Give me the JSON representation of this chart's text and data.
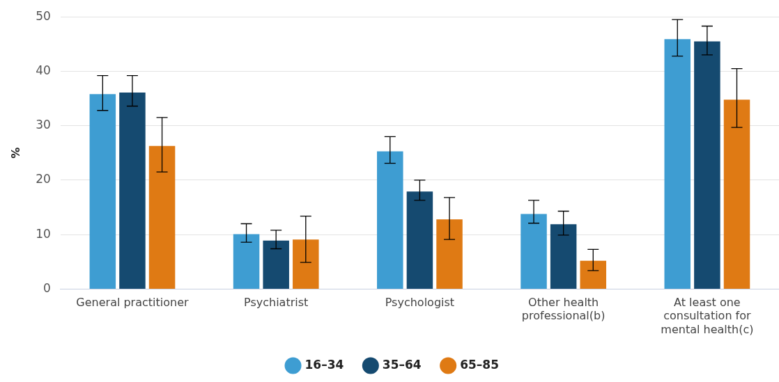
{
  "chart_data": {
    "type": "bar",
    "ylabel": "%",
    "categories": [
      "General practitioner",
      "Psychiatrist",
      "Psychologist",
      "Other health professional(b)",
      "At least one consultation for mental health(c)"
    ],
    "series": [
      {
        "name": "16–34",
        "color": "#3e9dd2",
        "values": [
          35.8,
          10.1,
          25.3,
          13.8,
          45.9
        ],
        "errors": [
          [
            32.8,
            39.2
          ],
          [
            8.6,
            12.0
          ],
          [
            23.1,
            28.0
          ],
          [
            12.1,
            16.3
          ],
          [
            42.8,
            49.5
          ]
        ]
      },
      {
        "name": "35–64",
        "color": "#154a70",
        "values": [
          36.1,
          8.9,
          17.9,
          11.9,
          45.5
        ],
        "errors": [
          [
            33.6,
            39.2
          ],
          [
            7.4,
            10.8
          ],
          [
            16.3,
            20.0
          ],
          [
            9.9,
            14.3
          ],
          [
            43.0,
            48.3
          ]
        ]
      },
      {
        "name": "65–85",
        "color": "#df7a14",
        "values": [
          26.3,
          9.1,
          12.8,
          5.2,
          34.8
        ],
        "errors": [
          [
            21.5,
            31.5
          ],
          [
            4.9,
            13.4
          ],
          [
            9.1,
            16.8
          ],
          [
            3.4,
            7.3
          ],
          [
            29.7,
            40.5
          ]
        ]
      }
    ],
    "ylim": [
      0,
      50
    ],
    "yticks": [
      0,
      10,
      20,
      30,
      40,
      50
    ],
    "grid": "y",
    "legend": "bottom"
  }
}
